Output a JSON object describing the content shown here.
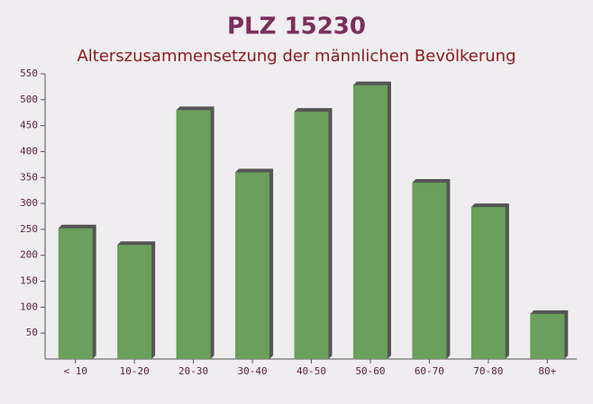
{
  "chart_data": {
    "type": "bar",
    "title": "PLZ 15230",
    "subtitle": "Alterszusammensetzung der männlichen Bevölkerung",
    "categories": [
      "< 10",
      "10-20",
      "20-30",
      "30-40",
      "40-50",
      "50-60",
      "60-70",
      "70-80",
      "80+"
    ],
    "values": [
      252,
      220,
      480,
      360,
      477,
      528,
      340,
      293,
      87
    ],
    "color": "#6a9f5c",
    "ylim": [
      0,
      550
    ],
    "yticks": [
      50,
      100,
      150,
      200,
      250,
      300,
      350,
      400,
      450,
      500,
      550
    ],
    "grid": false
  }
}
